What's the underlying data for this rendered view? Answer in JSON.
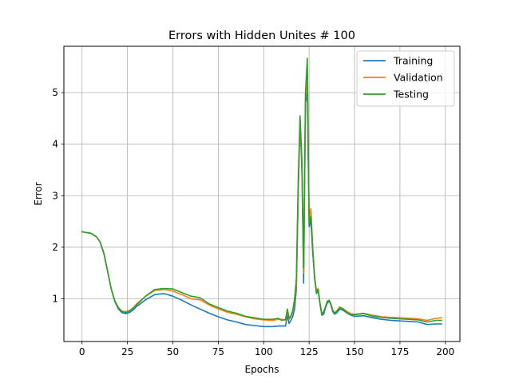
{
  "chart_data": {
    "type": "line",
    "title": "Errors with Hidden Unites # 100",
    "xlabel": "Epochs",
    "ylabel": "Error",
    "xlim": [
      -10,
      208
    ],
    "ylim": [
      0.17,
      5.9
    ],
    "xticks": [
      0,
      25,
      50,
      75,
      100,
      125,
      150,
      175,
      200
    ],
    "yticks": [
      1,
      2,
      3,
      4,
      5
    ],
    "grid": true,
    "legend_position": "top-right",
    "series": [
      {
        "name": "Training",
        "color": "#1f77b4",
        "x": [
          0,
          5,
          8,
          10,
          12,
          14,
          16,
          18,
          20,
          22,
          24,
          26,
          28,
          30,
          35,
          40,
          45,
          50,
          55,
          60,
          65,
          70,
          75,
          80,
          85,
          90,
          95,
          100,
          105,
          108,
          110,
          112,
          113,
          114,
          115,
          116,
          117,
          118,
          119,
          120,
          121,
          122,
          123,
          124,
          125,
          126,
          127,
          128,
          129,
          130,
          131,
          132,
          133,
          134,
          135,
          136,
          137,
          138,
          139,
          140,
          142,
          144,
          146,
          148,
          150,
          155,
          160,
          165,
          170,
          175,
          180,
          185,
          190,
          195,
          198
        ],
        "values": [
          2.3,
          2.27,
          2.2,
          2.1,
          1.88,
          1.55,
          1.2,
          0.95,
          0.8,
          0.73,
          0.71,
          0.73,
          0.78,
          0.85,
          0.98,
          1.08,
          1.1,
          1.05,
          0.97,
          0.88,
          0.8,
          0.72,
          0.65,
          0.59,
          0.55,
          0.5,
          0.48,
          0.46,
          0.46,
          0.47,
          0.47,
          0.47,
          0.68,
          0.52,
          0.58,
          0.66,
          0.8,
          1.2,
          3.0,
          4.45,
          3.5,
          1.3,
          4.8,
          5.0,
          2.4,
          2.5,
          1.9,
          1.4,
          1.1,
          1.15,
          0.9,
          0.68,
          0.7,
          0.82,
          0.92,
          0.95,
          0.88,
          0.75,
          0.7,
          0.72,
          0.8,
          0.77,
          0.72,
          0.68,
          0.66,
          0.67,
          0.63,
          0.6,
          0.58,
          0.57,
          0.56,
          0.55,
          0.5,
          0.51,
          0.51
        ]
      },
      {
        "name": "Validation",
        "color": "#ff7f0e",
        "x": [
          0,
          5,
          8,
          10,
          12,
          14,
          16,
          18,
          20,
          22,
          24,
          26,
          28,
          30,
          35,
          40,
          45,
          50,
          55,
          60,
          65,
          70,
          75,
          80,
          85,
          90,
          95,
          100,
          105,
          108,
          110,
          112,
          113,
          114,
          115,
          116,
          117,
          118,
          119,
          120,
          121,
          122,
          123,
          124,
          125,
          126,
          127,
          128,
          129,
          130,
          131,
          132,
          133,
          134,
          135,
          136,
          137,
          138,
          139,
          140,
          142,
          144,
          146,
          148,
          150,
          155,
          160,
          165,
          170,
          175,
          180,
          185,
          190,
          195,
          198
        ],
        "values": [
          2.3,
          2.27,
          2.2,
          2.1,
          1.88,
          1.55,
          1.2,
          0.97,
          0.83,
          0.76,
          0.75,
          0.77,
          0.82,
          0.9,
          1.05,
          1.16,
          1.18,
          1.15,
          1.08,
          1.0,
          0.98,
          0.88,
          0.8,
          0.74,
          0.7,
          0.65,
          0.61,
          0.59,
          0.58,
          0.6,
          0.6,
          0.58,
          0.78,
          0.6,
          0.65,
          0.75,
          0.95,
          1.3,
          3.1,
          4.5,
          3.6,
          1.5,
          4.9,
          5.3,
          2.55,
          2.75,
          2.0,
          1.45,
          1.15,
          1.2,
          0.92,
          0.72,
          0.75,
          0.85,
          0.95,
          0.97,
          0.9,
          0.78,
          0.73,
          0.76,
          0.84,
          0.8,
          0.75,
          0.71,
          0.7,
          0.72,
          0.68,
          0.65,
          0.64,
          0.63,
          0.62,
          0.61,
          0.58,
          0.62,
          0.63
        ]
      },
      {
        "name": "Testing",
        "color": "#2ca02c",
        "x": [
          0,
          5,
          8,
          10,
          12,
          14,
          16,
          18,
          20,
          22,
          24,
          26,
          28,
          30,
          35,
          40,
          45,
          50,
          55,
          60,
          65,
          70,
          75,
          80,
          85,
          90,
          95,
          100,
          105,
          108,
          110,
          112,
          113,
          114,
          115,
          116,
          117,
          118,
          119,
          120,
          121,
          122,
          123,
          124,
          125,
          126,
          127,
          128,
          129,
          130,
          131,
          132,
          133,
          134,
          135,
          136,
          137,
          138,
          139,
          140,
          142,
          144,
          146,
          148,
          150,
          155,
          160,
          165,
          170,
          175,
          180,
          185,
          190,
          195,
          198
        ],
        "values": [
          2.3,
          2.27,
          2.2,
          2.1,
          1.88,
          1.55,
          1.2,
          0.96,
          0.82,
          0.75,
          0.73,
          0.76,
          0.81,
          0.88,
          1.05,
          1.18,
          1.2,
          1.19,
          1.12,
          1.05,
          1.02,
          0.9,
          0.83,
          0.76,
          0.72,
          0.66,
          0.63,
          0.6,
          0.6,
          0.62,
          0.58,
          0.6,
          0.8,
          0.62,
          0.67,
          0.78,
          1.0,
          1.4,
          3.3,
          4.55,
          3.7,
          1.6,
          5.0,
          5.67,
          2.45,
          2.6,
          1.95,
          1.42,
          1.12,
          1.18,
          0.9,
          0.7,
          0.74,
          0.84,
          0.95,
          0.97,
          0.89,
          0.77,
          0.72,
          0.74,
          0.83,
          0.79,
          0.73,
          0.69,
          0.69,
          0.71,
          0.66,
          0.64,
          0.62,
          0.61,
          0.6,
          0.59,
          0.55,
          0.58,
          0.58
        ]
      }
    ]
  }
}
